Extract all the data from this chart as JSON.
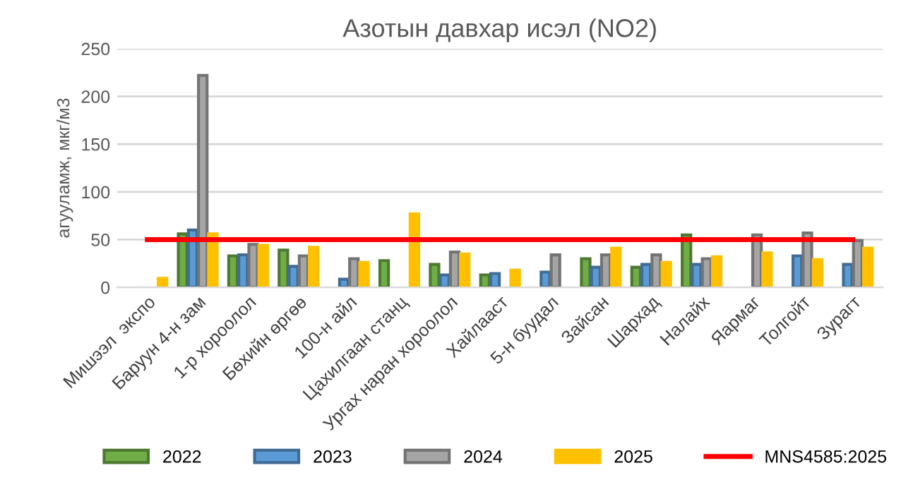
{
  "chart_data": {
    "type": "bar",
    "title": "Азотын давхар исэл (NO2)",
    "ylabel": "агууламж, мкг/м3",
    "categories": [
      "Мишээл  экспо",
      "Баруун 4-н зам",
      "1-р хороолол",
      "Бөхийн өргөө",
      "100-н айл",
      "Цахилгаан станц",
      "Ургах наран хороолол",
      "Хайлааст",
      "5-н буудал",
      "Зайсан",
      "Шархад",
      "Налайх",
      "Яармаг",
      "Толгойт",
      "Зурагт"
    ],
    "series": [
      {
        "name": "2022",
        "color": "#70ad47",
        "values": [
          null,
          56,
          33,
          39,
          null,
          28,
          24,
          13,
          null,
          30,
          21,
          55,
          null,
          null,
          null
        ]
      },
      {
        "name": "2023",
        "color": "#5b9bd5",
        "values": [
          null,
          60,
          34,
          22,
          8.5,
          null,
          13,
          14.5,
          16,
          21,
          24,
          24,
          null,
          33,
          24
        ]
      },
      {
        "name": "2024",
        "color": "#a5a5a5",
        "values": [
          null,
          222,
          45,
          33,
          30,
          null,
          37,
          null,
          34,
          34,
          34,
          30,
          55,
          57,
          49
        ]
      },
      {
        "name": "2025",
        "color": "#ffc000",
        "values": [
          9.5,
          56,
          44,
          42,
          26,
          77,
          35,
          18,
          null,
          41,
          26,
          32,
          36,
          29,
          41
        ]
      },
      {
        "name": "MNS4585:2025",
        "type": "line",
        "color": "#ff0000",
        "values": [
          50,
          50,
          50,
          50,
          50,
          50,
          50,
          50,
          50,
          50,
          50,
          50,
          50,
          50,
          50
        ]
      }
    ],
    "ylim": [
      0,
      250
    ],
    "yticks": [
      0,
      50,
      100,
      150,
      200,
      250
    ],
    "grid": "y",
    "legend": "bottom"
  }
}
